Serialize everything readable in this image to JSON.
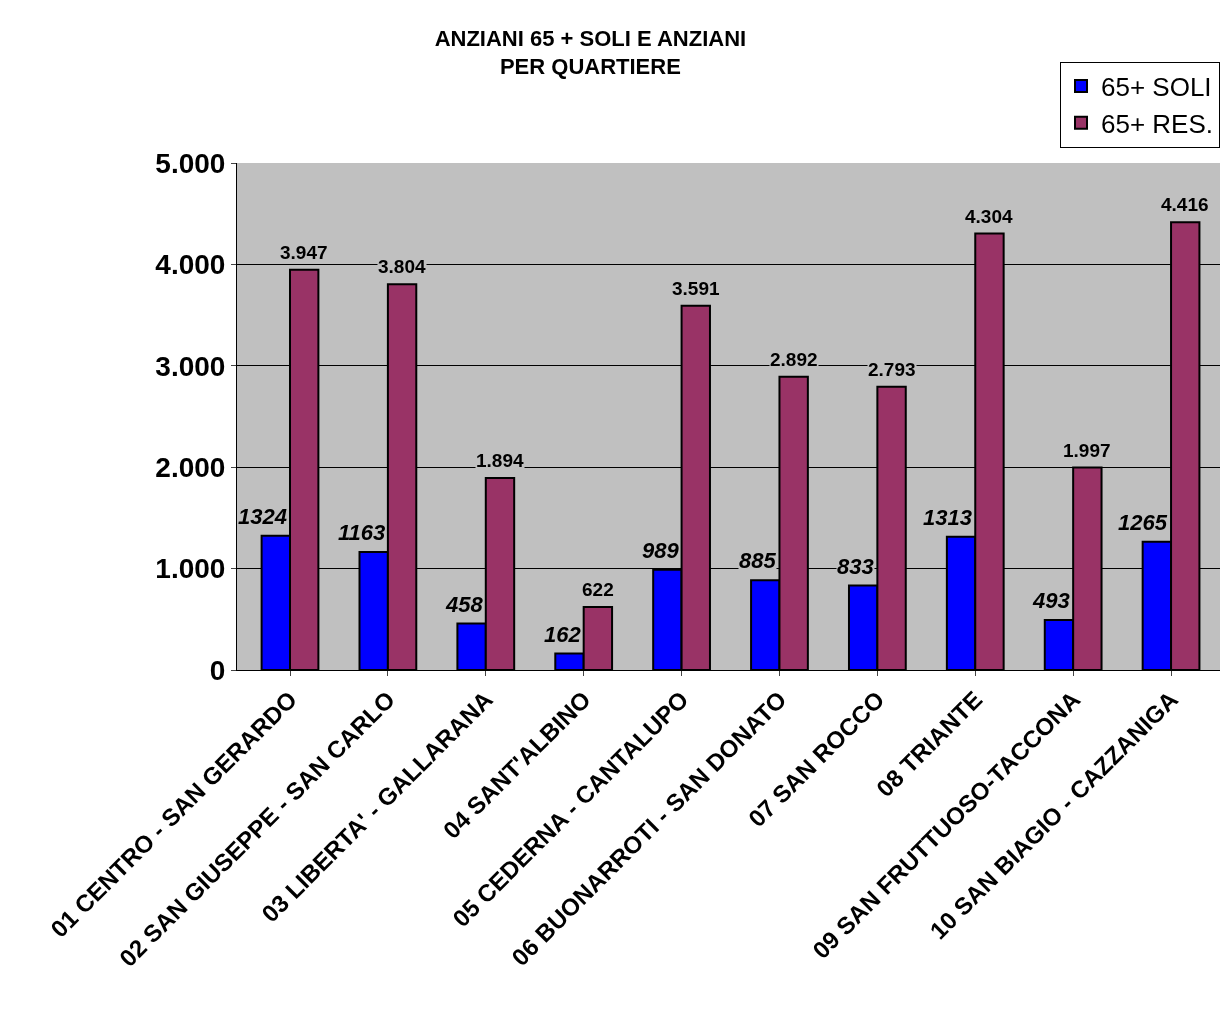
{
  "chart_data": {
    "type": "bar",
    "title": "ANZIANI 65 + SOLI E ANZIANI\nPER QUARTIERE",
    "categories": [
      "01 CENTRO - SAN GERARDO",
      "02 SAN GIUSEPPE - SAN CARLO",
      "03 LIBERTA' - GALLARANA",
      "04 SANT'ALBINO",
      "05 CEDERNA - CANTALUPO",
      "06 BUONARROTI - SAN DONATO",
      "07 SAN ROCCO",
      "08 TRIANTE",
      "09 SAN FRUTTUOSO-TACCONA",
      "10 SAN BIAGIO - CAZZANIGA"
    ],
    "series": [
      {
        "name": "65+ SOLI",
        "color": "#0000ff",
        "values": [
          1324,
          1163,
          458,
          162,
          989,
          885,
          833,
          1313,
          493,
          1265
        ],
        "value_labels": [
          "1324",
          "1163",
          "458",
          "162",
          "989",
          "885",
          "833",
          "1313",
          "493",
          "1265"
        ]
      },
      {
        "name": "65+ RES.",
        "color": "#993366",
        "values": [
          3947,
          3804,
          1894,
          622,
          3591,
          2892,
          2793,
          4304,
          1997,
          4416
        ],
        "value_labels": [
          "3.947",
          "3.804",
          "1.894",
          "622",
          "3.591",
          "2.892",
          "2.793",
          "4.304",
          "1.997",
          "4.416"
        ]
      }
    ],
    "ylim": [
      0,
      5000
    ],
    "yticks": [
      0,
      {
        "value": 1000,
        "label": "1.000"
      },
      {
        "value": 2000,
        "label": "2.000"
      },
      {
        "value": 3000,
        "label": "3.000"
      },
      {
        "value": 4000,
        "label": "4.000"
      },
      {
        "value": 5000,
        "label": "5.000"
      }
    ],
    "grid": "y",
    "legend": "top right"
  }
}
